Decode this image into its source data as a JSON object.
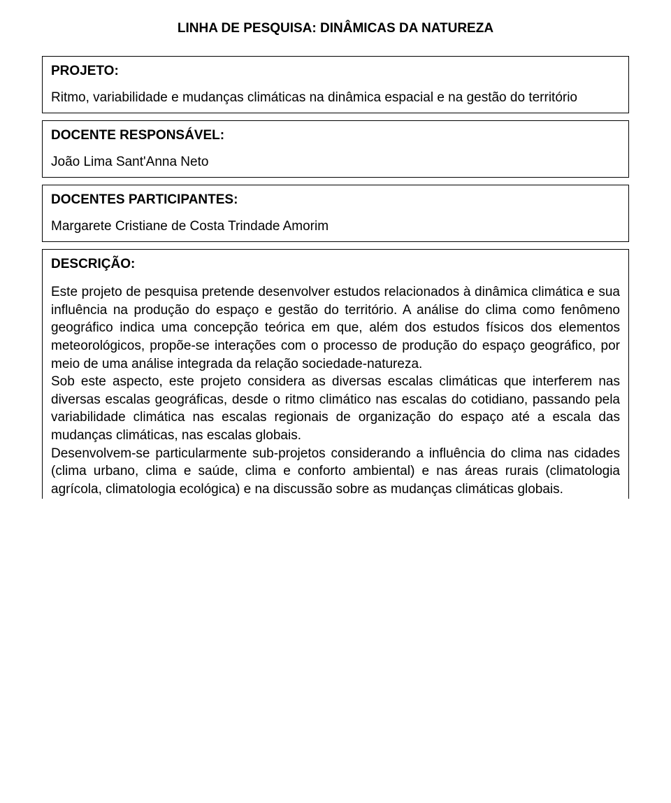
{
  "page": {
    "title": "LINHA DE PESQUISA: DINÂMICAS DA NATUREZA"
  },
  "projeto": {
    "label": "PROJETO:",
    "value": "Ritmo, variabilidade e mudanças climáticas na dinâmica espacial e na gestão do território"
  },
  "docente_responsavel": {
    "label": "DOCENTE RESPONSÁVEL:",
    "value": "João Lima Sant'Anna Neto"
  },
  "docentes_participantes": {
    "label": "DOCENTES PARTICIPANTES:",
    "value": "Margarete Cristiane de Costa Trindade Amorim"
  },
  "descricao": {
    "label": "DESCRIÇÃO:",
    "paragraphs": [
      "Este projeto de pesquisa pretende desenvolver estudos relacionados à dinâmica climática e sua influência na produção do espaço e gestão do território. A análise do clima como fenômeno geográfico indica uma concepção teórica em que, além dos estudos físicos dos elementos meteorológicos, propõe-se interações com o processo de produção do espaço geográfico, por meio de uma análise integrada da relação sociedade-natureza.",
      "Sob este aspecto, este projeto considera as diversas escalas climáticas que interferem nas diversas escalas geográficas, desde o ritmo climático nas escalas do cotidiano, passando pela variabilidade climática nas escalas regionais de organização do espaço até a escala das mudanças climáticas, nas escalas globais.",
      "Desenvolvem-se particularmente sub-projetos considerando a influência do clima nas cidades (clima urbano, clima e saúde, clima e conforto ambiental) e nas áreas rurais (climatologia agrícola, climatologia ecológica) e na discussão sobre as mudanças climáticas globais."
    ]
  }
}
